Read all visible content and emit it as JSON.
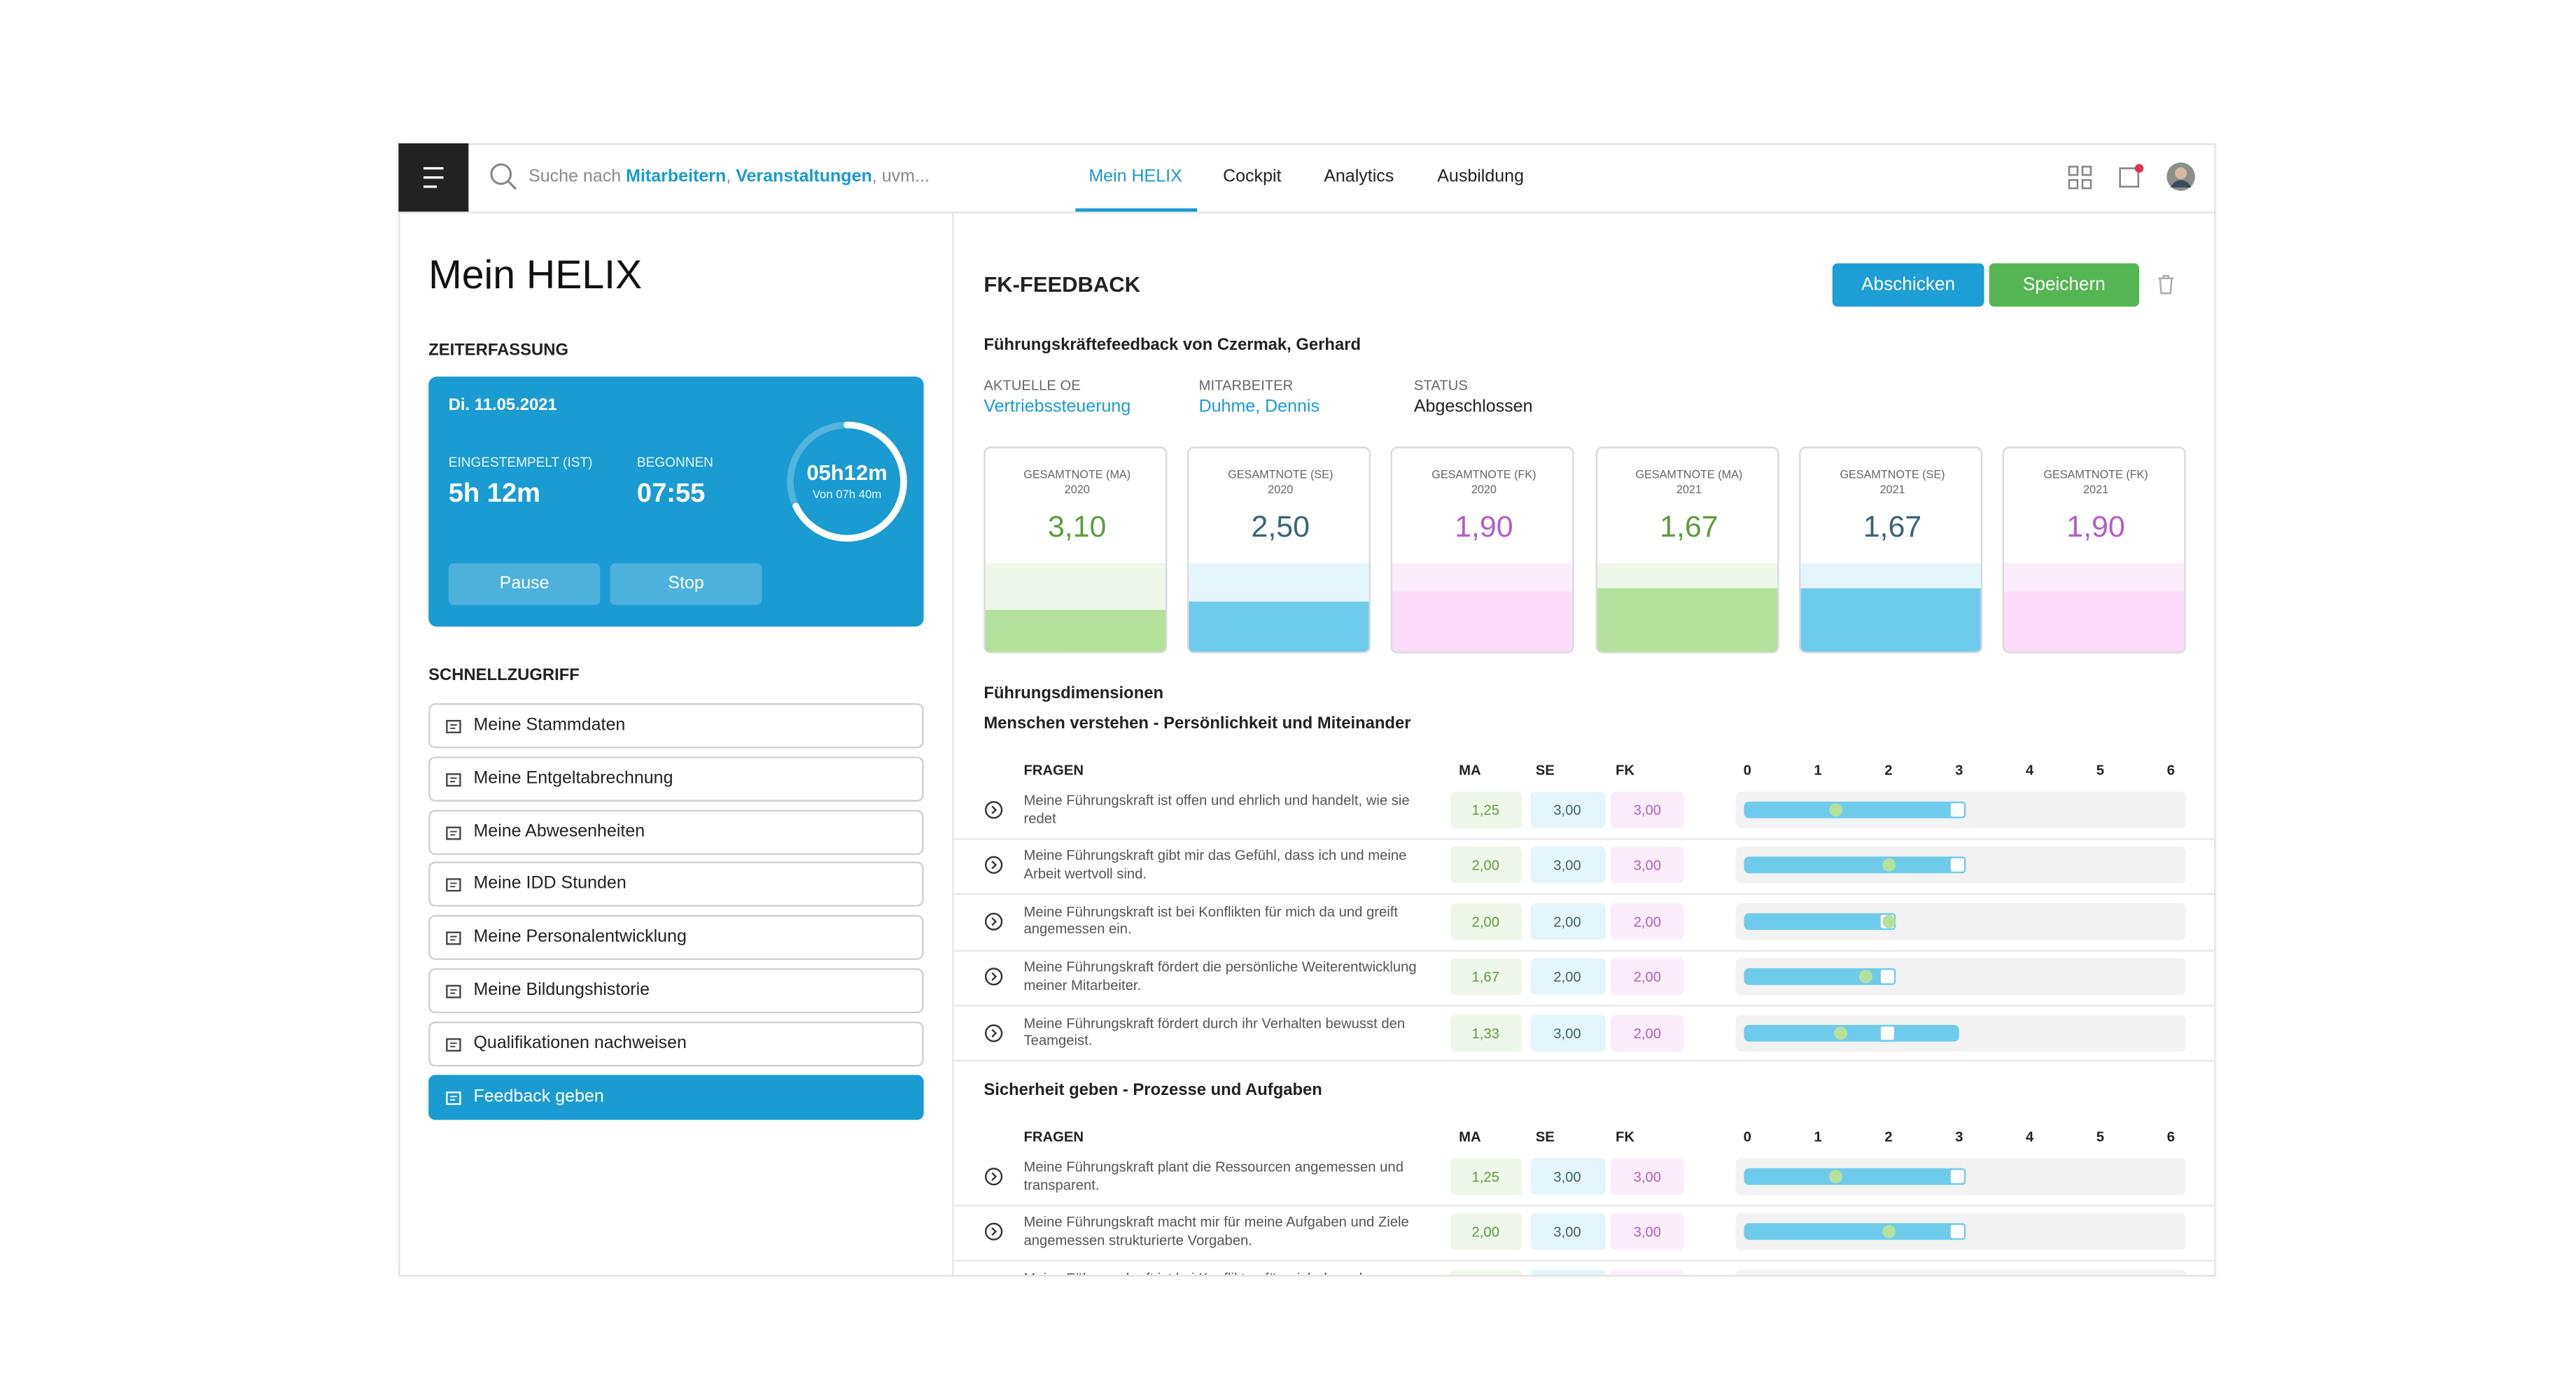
{
  "nav": {
    "search": [
      {
        "text": "Suche nach "
      },
      {
        "text": "Mitarbeitern",
        "highlight": true
      },
      {
        "text": ", "
      },
      {
        "text": "Veranstaltungen",
        "highlight": true
      },
      {
        "text": ", uvm..."
      }
    ],
    "tabs": [
      "Mein HELIX",
      "Cockpit",
      "Analytics",
      "Ausbildung"
    ],
    "active_tab": 0
  },
  "sidebar": {
    "title": "Mein HELIX",
    "time_section": "ZEITERFASSUNG",
    "time_card": {
      "date": "Di. 11.05.2021",
      "fields": [
        {
          "label": "EINGESTEMPELT (IST)",
          "value": "5h 12m"
        },
        {
          "label": "BEGONNEN",
          "value": "07:55"
        }
      ],
      "ring_value": "05h12m",
      "ring_caption": "Von 07h 40m",
      "buttons": [
        "Pause",
        "Stop"
      ]
    },
    "quick_section": "SCHNELLZUGRIFF",
    "quick_links": [
      "Meine Stammdaten",
      "Meine Entgeltabrechnung",
      "Meine Abwesenheiten",
      "Meine IDD Stunden",
      "Meine Personalentwicklung",
      "Meine Bildungshistorie",
      "Qualifikationen nachweisen",
      "Feedback geben"
    ],
    "active_link": 7
  },
  "main": {
    "title": "FK-FEEDBACK",
    "actions": [
      {
        "label": "Abschicken",
        "color": "#1d9ed4"
      },
      {
        "label": "Speichern",
        "color": "#55b552"
      }
    ],
    "subtitle": "Führungskräftefeedback von Czermak, Gerhard",
    "meta": [
      {
        "label": "AKTUELLE OE",
        "value": "Vertriebssteuerung",
        "link": true
      },
      {
        "label": "MITARBEITER",
        "value": "Duhme, Dennis",
        "link": true
      },
      {
        "label": "STATUS",
        "value": "Abgeschlossen"
      }
    ],
    "palette": {
      "MA": {
        "text": "#5e9c3f",
        "fill": "#b3e09b",
        "tint": "#eef7e9"
      },
      "SE": {
        "text": "#3a6476",
        "fill": "#6fcbeb",
        "tint": "#e4f5fb"
      },
      "FK": {
        "text": "#b35dc6",
        "fill": "#fadbf8",
        "tint": "#fcedfb"
      }
    },
    "scores": [
      {
        "label": "GESAMTNOTE (MA)",
        "year": "2020",
        "group": "MA",
        "score": {
          "value": 3.1,
          "label": "3,10"
        }
      },
      {
        "label": "GESAMTNOTE (SE)",
        "year": "2020",
        "group": "SE",
        "score": {
          "value": 2.5,
          "label": "2,50"
        }
      },
      {
        "label": "GESAMTNOTE (FK)",
        "year": "2020",
        "group": "FK",
        "score": {
          "value": 1.9,
          "label": "1,90"
        }
      },
      {
        "label": "GESAMTNOTE (MA)",
        "year": "2021",
        "group": "MA",
        "score": {
          "value": 1.67,
          "label": "1,67"
        }
      },
      {
        "label": "GESAMTNOTE (SE)",
        "year": "2021",
        "group": "SE",
        "score": {
          "value": 1.67,
          "label": "1,67"
        }
      },
      {
        "label": "GESAMTNOTE (FK)",
        "year": "2021",
        "group": "FK",
        "score": {
          "value": 1.9,
          "label": "1,90"
        }
      }
    ],
    "dimensions_title": "Führungsdimensionen",
    "groups": [
      {
        "title": "Menschen verstehen - Persönlichkeit und Miteinander",
        "columns": [
          "FRAGEN",
          "MA",
          "SE",
          "FK"
        ],
        "axis_ticks": [
          0,
          1,
          2,
          3,
          4,
          5,
          6
        ],
        "rows": [
          {
            "question": "Meine Führungskraft ist offen und ehrlich und handelt, wie sie redet",
            "values": [
              {
                "value": 1.25,
                "label": "1,25"
              },
              {
                "value": 3,
                "label": "3,00"
              },
              {
                "value": 3,
                "label": "3,00"
              }
            ]
          },
          {
            "question": "Meine Führungskraft gibt mir das Gefühl, dass ich und meine Arbeit wertvoll sind.",
            "values": [
              {
                "value": 2,
                "label": "2,00"
              },
              {
                "value": 3,
                "label": "3,00"
              },
              {
                "value": 3,
                "label": "3,00"
              }
            ]
          },
          {
            "question": "Meine Führungskraft ist bei Konflikten für mich da und greift angemessen ein.",
            "values": [
              {
                "value": 2,
                "label": "2,00"
              },
              {
                "value": 2,
                "label": "2,00"
              },
              {
                "value": 2,
                "label": "2,00"
              }
            ]
          },
          {
            "question": "Meine Führungskraft fördert die persönliche Weiter­entwicklung meiner Mitarbeiter.",
            "values": [
              {
                "value": 1.67,
                "label": "1,67"
              },
              {
                "value": 2,
                "label": "2,00"
              },
              {
                "value": 2,
                "label": "2,00"
              }
            ]
          },
          {
            "question": "Meine Führungskraft fördert durch ihr Verhalten bewusst den Teamgeist.",
            "values": [
              {
                "value": 1.33,
                "label": "1,33"
              },
              {
                "value": 3,
                "label": "3,00"
              },
              {
                "value": 2,
                "label": "2,00"
              }
            ]
          }
        ]
      },
      {
        "title": "Sicherheit geben - Prozesse und Aufgaben",
        "columns": [
          "FRAGEN",
          "MA",
          "SE",
          "FK"
        ],
        "axis_ticks": [
          0,
          1,
          2,
          3,
          4,
          5,
          6
        ],
        "rows": [
          {
            "question": "Meine Führungskraft plant die Ressourcen angemessen und transparent.",
            "values": [
              {
                "value": 1.25,
                "label": "1,25"
              },
              {
                "value": 3,
                "label": "3,00"
              },
              {
                "value": 3,
                "label": "3,00"
              }
            ]
          },
          {
            "question": "Meine Führungskraft macht mir für meine Aufgaben und Ziele angemessen strukturierte Vorgaben.",
            "values": [
              {
                "value": 2,
                "label": "2,00"
              },
              {
                "value": 3,
                "label": "3,00"
              },
              {
                "value": 3,
                "label": "3,00"
              }
            ]
          },
          {
            "question": "Meine Führungskraft ist bei Konflikten für mich da und",
            "values": []
          }
        ]
      }
    ]
  }
}
